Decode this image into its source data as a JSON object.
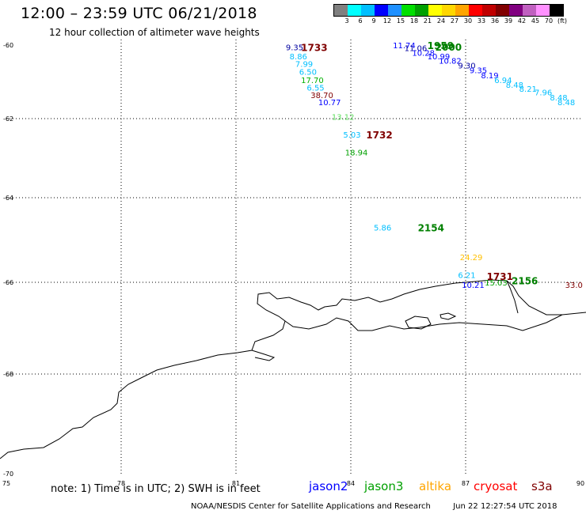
{
  "header": {
    "title": "12:00 – 23:59 UTC 06/21/2018",
    "subtitle": "12 hour collection of altimeter wave heights"
  },
  "colorbar": {
    "colors": [
      "#808080",
      "#00ffff",
      "#00bfff",
      "#0000ff",
      "#1e90ff",
      "#00e000",
      "#00a000",
      "#ffff00",
      "#ffd700",
      "#ffa500",
      "#ff0000",
      "#c00000",
      "#800000",
      "#800080",
      "#c060c0",
      "#ff90ff",
      "#000000"
    ],
    "labels": [
      "3",
      "6",
      "9",
      "12",
      "15",
      "18",
      "21",
      "24",
      "27",
      "30",
      "33",
      "36",
      "39",
      "42",
      "45",
      "70",
      "(ft)"
    ]
  },
  "map": {
    "lat_labels": [
      "-60",
      "-62",
      "-64",
      "-66",
      "-68",
      "-70"
    ],
    "lon_labels": [
      "75",
      "78",
      "81",
      "84",
      "87",
      "90"
    ],
    "lat_values": [
      -60,
      -62,
      -64,
      -66,
      -68,
      -70
    ],
    "lon_values": [
      75,
      78,
      81,
      84,
      87,
      90
    ]
  },
  "tracks": [
    {
      "name": "jason2-A",
      "times": [
        "1733"
      ],
      "time_color": "#800000",
      "time_pos": [
        82.7,
        -60.05
      ],
      "points": [
        {
          "v": "9.35",
          "lon": 82.3,
          "lat": -60.05,
          "c": "#0000a0"
        },
        {
          "v": "8.86",
          "lon": 82.4,
          "lat": -60.3,
          "c": "#00bfff"
        },
        {
          "v": "7.99",
          "lon": 82.55,
          "lat": -60.5,
          "c": "#00bfff"
        },
        {
          "v": "6.50",
          "lon": 82.65,
          "lat": -60.72,
          "c": "#00bfff"
        },
        {
          "v": "17.70",
          "lon": 82.7,
          "lat": -60.95,
          "c": "#00b000"
        },
        {
          "v": "6.55",
          "lon": 82.85,
          "lat": -61.15,
          "c": "#00bfff"
        },
        {
          "v": "38.70",
          "lon": 82.95,
          "lat": -61.35,
          "c": "#800000"
        },
        {
          "v": "10.77",
          "lon": 83.15,
          "lat": -61.55,
          "c": "#0000ff"
        },
        {
          "v": "13.12",
          "lon": 83.5,
          "lat": -61.95,
          "c": "#60e060"
        }
      ]
    },
    {
      "name": "s3a-B",
      "times": [
        "1732"
      ],
      "time_color": "#800000",
      "time_pos": [
        84.4,
        -62.4
      ],
      "points": [
        {
          "v": "5.03",
          "lon": 83.8,
          "lat": -62.4,
          "c": "#00bfff"
        },
        {
          "v": "18.94",
          "lon": 83.85,
          "lat": -62.85,
          "c": "#00a000"
        }
      ]
    },
    {
      "name": "jason3-C",
      "times": [
        "1959",
        "2000"
      ],
      "time_color": "#008000",
      "time_pos": [
        86.0,
        -59.95
      ],
      "points": [
        {
          "v": "11.74",
          "lon": 85.1,
          "lat": -59.95,
          "c": "#0000ff"
        },
        {
          "v": "11.06",
          "lon": 85.4,
          "lat": -60.07,
          "c": "#0000a0"
        },
        {
          "v": "10.28",
          "lon": 85.6,
          "lat": -60.2,
          "c": "#0000ff"
        },
        {
          "v": "10.99",
          "lon": 86.0,
          "lat": -60.3,
          "c": "#0000ff"
        },
        {
          "v": "10.82",
          "lon": 86.3,
          "lat": -60.42,
          "c": "#0000ff"
        },
        {
          "v": "9.30",
          "lon": 86.8,
          "lat": -60.55,
          "c": "#0000a0"
        },
        {
          "v": "9.35",
          "lon": 87.1,
          "lat": -60.68,
          "c": "#0000ff"
        },
        {
          "v": "8.19",
          "lon": 87.4,
          "lat": -60.82,
          "c": "#0000ff"
        },
        {
          "v": "6.94",
          "lon": 87.75,
          "lat": -60.95,
          "c": "#00bfff"
        },
        {
          "v": "8.48",
          "lon": 88.05,
          "lat": -61.08,
          "c": "#00bfff"
        },
        {
          "v": "8.21",
          "lon": 88.4,
          "lat": -61.18,
          "c": "#00bfff"
        },
        {
          "v": "7.96",
          "lon": 88.8,
          "lat": -61.28,
          "c": "#00bfff"
        },
        {
          "v": "8.48",
          "lon": 89.2,
          "lat": -61.42,
          "c": "#00bfff"
        },
        {
          "v": "8.48",
          "lon": 89.4,
          "lat": -61.55,
          "c": "#00bfff"
        }
      ]
    },
    {
      "name": "jason3-D",
      "times": [
        "2154"
      ],
      "time_color": "#008000",
      "time_pos": [
        85.75,
        -64.7
      ],
      "points": [
        {
          "v": "5.86",
          "lon": 84.6,
          "lat": -64.7,
          "c": "#00bfff"
        },
        {
          "v": "24.29",
          "lon": 86.85,
          "lat": -65.4,
          "c": "#ffbf00"
        }
      ]
    },
    {
      "name": "mixed-E",
      "times": [
        "1731"
      ],
      "time_color": "#800000",
      "time_pos": [
        87.55,
        -65.85
      ],
      "points": [
        {
          "v": "6.21",
          "lon": 86.8,
          "lat": -65.82,
          "c": "#00bfff"
        },
        {
          "v": "10.21",
          "lon": 86.9,
          "lat": -66.05,
          "c": "#0000ff"
        },
        {
          "v": "15.03",
          "lon": 87.5,
          "lat": -66.0,
          "c": "#00a000"
        }
      ]
    },
    {
      "name": "jason3-F",
      "times": [
        "2156"
      ],
      "time_color": "#008000",
      "time_pos": [
        88.2,
        -65.95
      ],
      "points": []
    },
    {
      "name": "edge-G",
      "times": [],
      "time_color": "#800000",
      "time_pos": [
        0,
        0
      ],
      "points": [
        {
          "v": "33.0",
          "lon": 89.6,
          "lat": -66.05,
          "c": "#800000"
        }
      ]
    }
  ],
  "footer": {
    "note": "note: 1) Time is in UTC; 2) SWH is in feet",
    "missions": [
      {
        "name": "jason2",
        "color": "#0000ff"
      },
      {
        "name": "jason3",
        "color": "#00a000"
      },
      {
        "name": "altika",
        "color": "#ffa500"
      },
      {
        "name": "cryosat",
        "color": "#ff0000"
      },
      {
        "name": "s3a",
        "color": "#800000"
      }
    ],
    "credit": "NOAA/NESDIS Center for Satellite Applications and Research",
    "timestamp": "Jun 22 12:27:54 UTC 2018"
  }
}
